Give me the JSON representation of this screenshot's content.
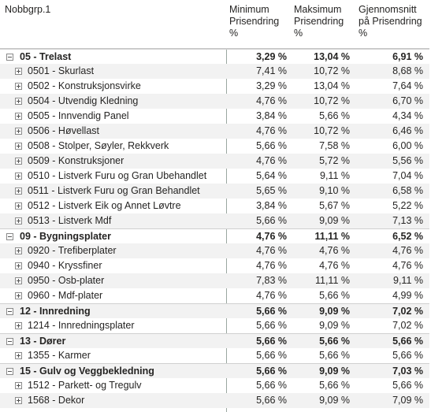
{
  "table": {
    "headers": [
      "Nobbgrp.1",
      "Minimum Prisendring %",
      "Maksimum Prisendring %",
      "Gjennomsnitt på Prisendring %"
    ],
    "groups": [
      {
        "cells": [
          "05 - Trelast",
          "3,29 %",
          "13,04 %",
          "6,91 %"
        ],
        "items": [
          [
            "0501 - Skurlast",
            "7,41 %",
            "10,72 %",
            "8,68 %"
          ],
          [
            "0502 - Konstruksjonsvirke",
            "3,29 %",
            "13,04 %",
            "7,64 %"
          ],
          [
            "0504 - Utvendig Kledning",
            "4,76 %",
            "10,72 %",
            "6,70 %"
          ],
          [
            "0505 - Innvendig Panel",
            "3,84 %",
            "5,66 %",
            "4,34 %"
          ],
          [
            "0506 - Høvellast",
            "4,76 %",
            "10,72 %",
            "6,46 %"
          ],
          [
            "0508 - Stolper, Søyler, Rekkverk",
            "5,66 %",
            "7,58 %",
            "6,00 %"
          ],
          [
            "0509 - Konstruksjoner",
            "4,76 %",
            "5,72 %",
            "5,56 %"
          ],
          [
            "0510 - Listverk Furu og Gran Ubehandlet",
            "5,64 %",
            "9,11 %",
            "7,04 %"
          ],
          [
            "0511 - Listverk Furu og Gran Behandlet",
            "5,65 %",
            "9,10 %",
            "6,58 %"
          ],
          [
            "0512 - Listverk Eik og Annet Løvtre",
            "3,84 %",
            "5,67 %",
            "5,22 %"
          ],
          [
            "0513 - Listverk Mdf",
            "5,66 %",
            "9,09 %",
            "7,13 %"
          ]
        ]
      },
      {
        "cells": [
          "09 - Bygningsplater",
          "4,76 %",
          "11,11 %",
          "6,52 %"
        ],
        "items": [
          [
            "0920 - Trefiberplater",
            "4,76 %",
            "4,76 %",
            "4,76 %"
          ],
          [
            "0940 - Kryssfiner",
            "4,76 %",
            "4,76 %",
            "4,76 %"
          ],
          [
            "0950 - Osb-plater",
            "7,83 %",
            "11,11 %",
            "9,11 %"
          ],
          [
            "0960 - Mdf-plater",
            "4,76 %",
            "5,66 %",
            "4,99 %"
          ]
        ]
      },
      {
        "cells": [
          "12 - Innredning",
          "5,66 %",
          "9,09 %",
          "7,02 %"
        ],
        "items": [
          [
            "1214 - Innredningsplater",
            "5,66 %",
            "9,09 %",
            "7,02 %"
          ]
        ]
      },
      {
        "cells": [
          "13 - Dører",
          "5,66 %",
          "5,66 %",
          "5,66 %"
        ],
        "items": [
          [
            "1355 - Karmer",
            "5,66 %",
            "5,66 %",
            "5,66 %"
          ]
        ]
      },
      {
        "cells": [
          "15 - Gulv og Veggbekledning",
          "5,66 %",
          "9,09 %",
          "7,03 %"
        ],
        "items": [
          [
            "1512 - Parkett- og Tregulv",
            "5,66 %",
            "5,66 %",
            "5,66 %"
          ],
          [
            "1568 - Dekor",
            "5,66 %",
            "9,09 %",
            "7,09 %"
          ]
        ]
      }
    ]
  }
}
